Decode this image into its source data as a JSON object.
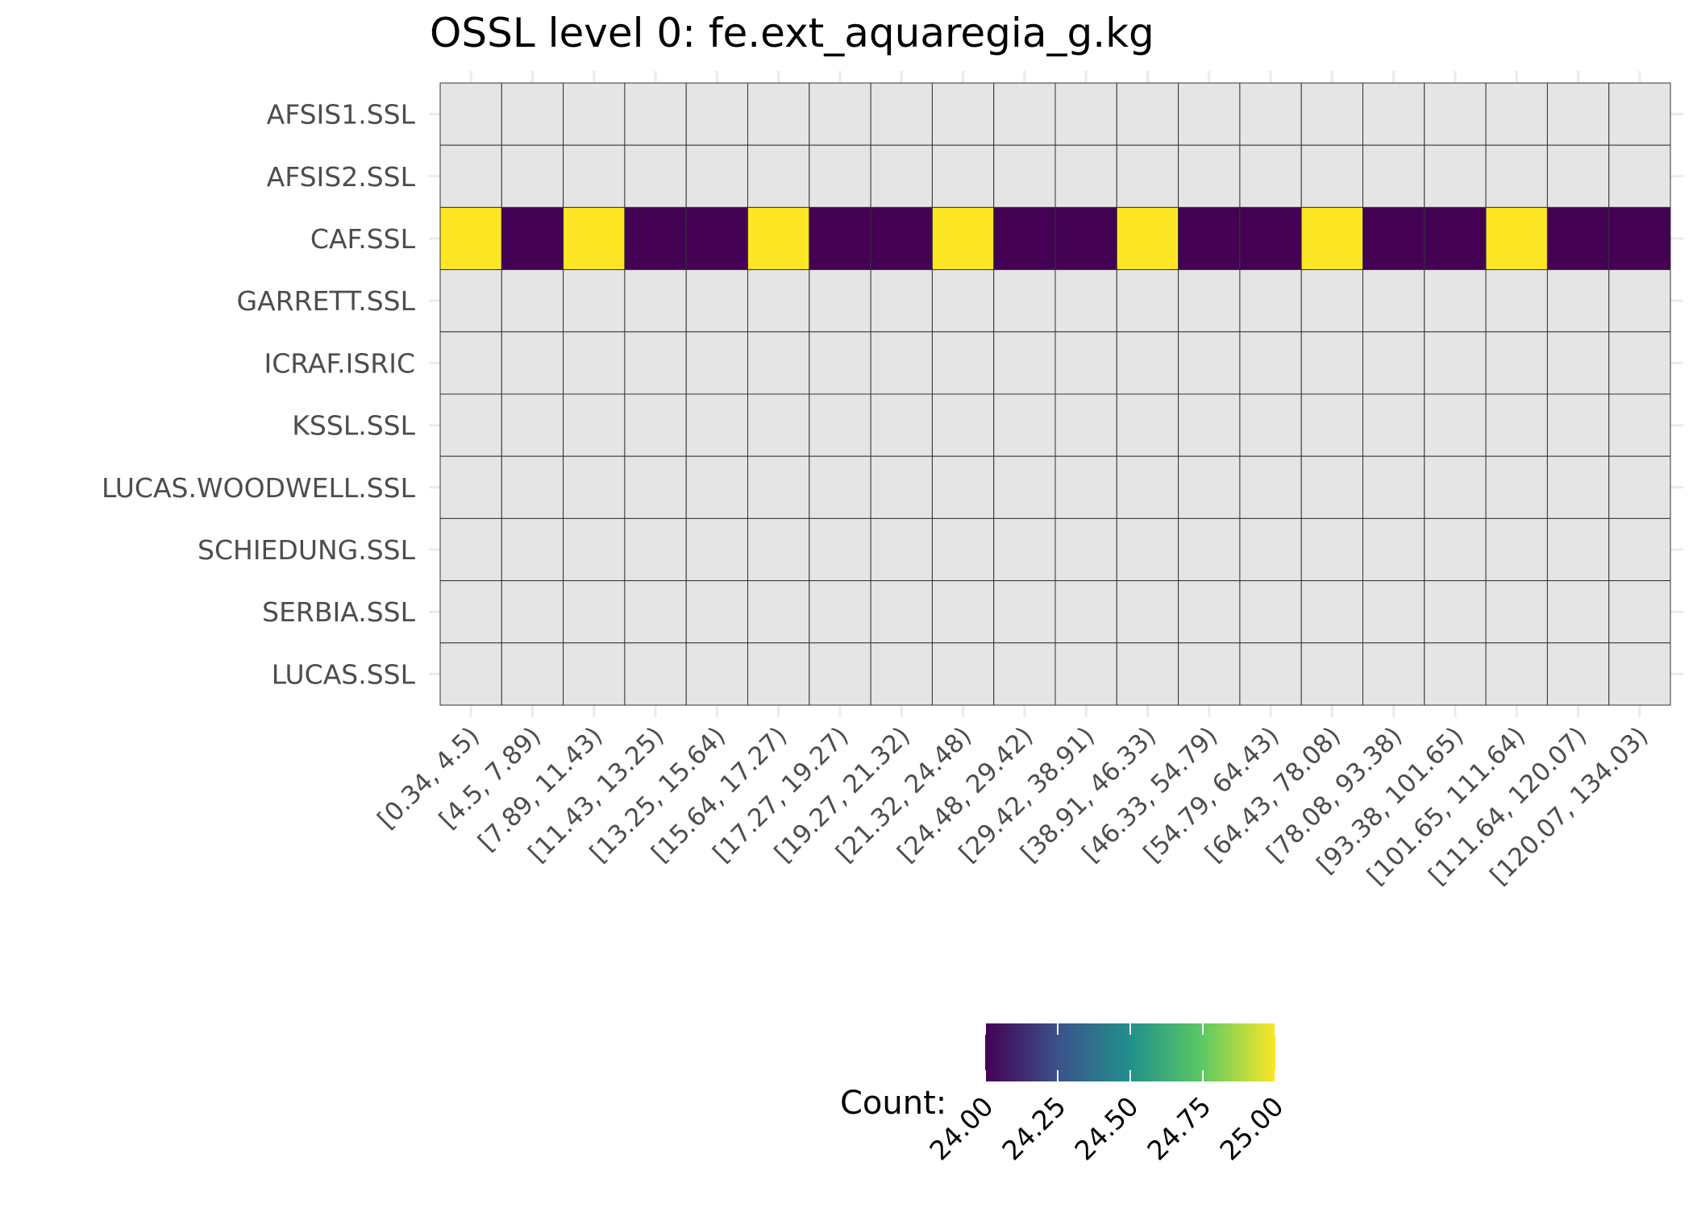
{
  "chart_data": {
    "type": "heatmap",
    "title": "OSSL level 0: fe.ext_aquaregia_g.kg",
    "xlabel": "",
    "ylabel": "",
    "x_categories": [
      "[0.34, 4.5)",
      "[4.5, 7.89)",
      "[7.89, 11.43)",
      "[11.43, 13.25)",
      "[13.25, 15.64)",
      "[15.64, 17.27)",
      "[17.27, 19.27)",
      "[19.27, 21.32)",
      "[21.32, 24.48)",
      "[24.48, 29.42)",
      "[29.42, 38.91)",
      "[38.91, 46.33)",
      "[46.33, 54.79)",
      "[54.79, 64.43)",
      "[64.43, 78.08)",
      "[78.08, 93.38)",
      "[93.38, 101.65)",
      "[101.65, 111.64)",
      "[111.64, 120.07)",
      "[120.07, 134.03)"
    ],
    "y_categories": [
      "AFSIS1.SSL",
      "AFSIS2.SSL",
      "CAF.SSL",
      "GARRETT.SSL",
      "ICRAF.ISRIC",
      "KSSL.SSL",
      "LUCAS.WOODWELL.SSL",
      "SCHIEDUNG.SSL",
      "SERBIA.SSL",
      "LUCAS.SSL"
    ],
    "values": [
      [
        null,
        null,
        null,
        null,
        null,
        null,
        null,
        null,
        null,
        null,
        null,
        null,
        null,
        null,
        null,
        null,
        null,
        null,
        null,
        null
      ],
      [
        null,
        null,
        null,
        null,
        null,
        null,
        null,
        null,
        null,
        null,
        null,
        null,
        null,
        null,
        null,
        null,
        null,
        null,
        null,
        null
      ],
      [
        25,
        24,
        25,
        24,
        24,
        25,
        24,
        24,
        25,
        24,
        24,
        25,
        24,
        24,
        25,
        24,
        24,
        25,
        24,
        24
      ],
      [
        null,
        null,
        null,
        null,
        null,
        null,
        null,
        null,
        null,
        null,
        null,
        null,
        null,
        null,
        null,
        null,
        null,
        null,
        null,
        null
      ],
      [
        null,
        null,
        null,
        null,
        null,
        null,
        null,
        null,
        null,
        null,
        null,
        null,
        null,
        null,
        null,
        null,
        null,
        null,
        null,
        null
      ],
      [
        null,
        null,
        null,
        null,
        null,
        null,
        null,
        null,
        null,
        null,
        null,
        null,
        null,
        null,
        null,
        null,
        null,
        null,
        null,
        null
      ],
      [
        null,
        null,
        null,
        null,
        null,
        null,
        null,
        null,
        null,
        null,
        null,
        null,
        null,
        null,
        null,
        null,
        null,
        null,
        null,
        null
      ],
      [
        null,
        null,
        null,
        null,
        null,
        null,
        null,
        null,
        null,
        null,
        null,
        null,
        null,
        null,
        null,
        null,
        null,
        null,
        null,
        null
      ],
      [
        null,
        null,
        null,
        null,
        null,
        null,
        null,
        null,
        null,
        null,
        null,
        null,
        null,
        null,
        null,
        null,
        null,
        null,
        null,
        null
      ],
      [
        null,
        null,
        null,
        null,
        null,
        null,
        null,
        null,
        null,
        null,
        null,
        null,
        null,
        null,
        null,
        null,
        null,
        null,
        null,
        null
      ]
    ],
    "legend": {
      "title": "Count:",
      "range": [
        24,
        25
      ],
      "ticks": [
        "24.00",
        "24.25",
        "24.50",
        "24.75",
        "25.00"
      ],
      "tick_values": [
        24,
        24.25,
        24.5,
        24.75,
        25
      ],
      "placement": "bottom"
    },
    "colors": {
      "na": "#e5e5e5",
      "low": "#440154",
      "high": "#fde725",
      "gradient": [
        "#440154",
        "#3b528b",
        "#21908c",
        "#5dc963",
        "#fde725"
      ],
      "grid": "#ebebeb",
      "border": "#333333"
    },
    "grid": true
  }
}
